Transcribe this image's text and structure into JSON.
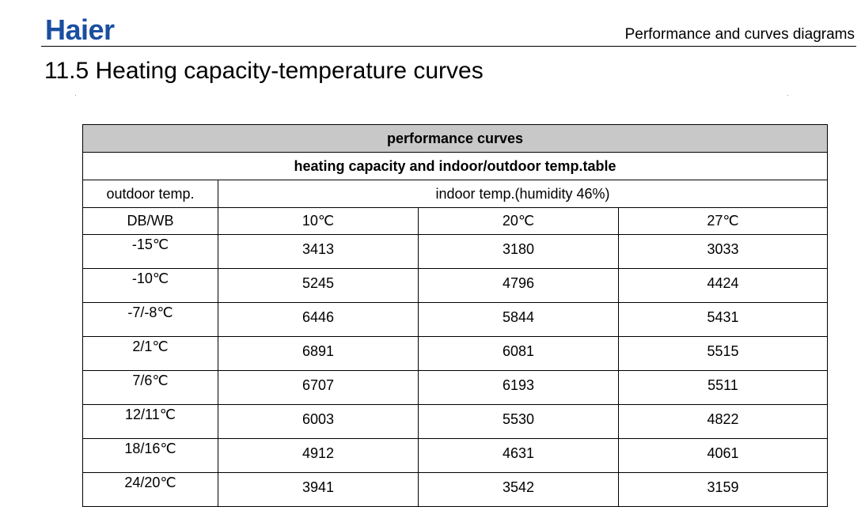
{
  "header": {
    "logo_text": "Haier",
    "section_label": "Performance and curves diagrams",
    "brand_color": "#1a4fa0"
  },
  "page_title": "11.5 Heating capacity-temperature curves",
  "table": {
    "title": "performance curves",
    "subtitle": "heating capacity and indoor/outdoor temp.table",
    "outdoor_header": "outdoor temp.",
    "indoor_header": "indoor temp.(humidity 46%)",
    "outdoor_unit_label": "DB/WB",
    "indoor_columns": [
      "10℃",
      "20℃",
      "27℃"
    ],
    "rows": [
      {
        "outdoor": "-15℃",
        "values": [
          "3413",
          "3180",
          "3033"
        ]
      },
      {
        "outdoor": "-10℃",
        "values": [
          "5245",
          "4796",
          "4424"
        ]
      },
      {
        "outdoor": "-7/-8℃",
        "values": [
          "6446",
          "5844",
          "5431"
        ]
      },
      {
        "outdoor": "2/1℃",
        "values": [
          "6891",
          "6081",
          "5515"
        ]
      },
      {
        "outdoor": "7/6℃",
        "values": [
          "6707",
          "6193",
          "5511"
        ]
      },
      {
        "outdoor": "12/11℃",
        "values": [
          "6003",
          "5530",
          "4822"
        ]
      },
      {
        "outdoor": "18/16℃",
        "values": [
          "4912",
          "4631",
          "4061"
        ]
      },
      {
        "outdoor": "24/20℃",
        "values": [
          "3941",
          "3542",
          "3159"
        ]
      }
    ]
  }
}
